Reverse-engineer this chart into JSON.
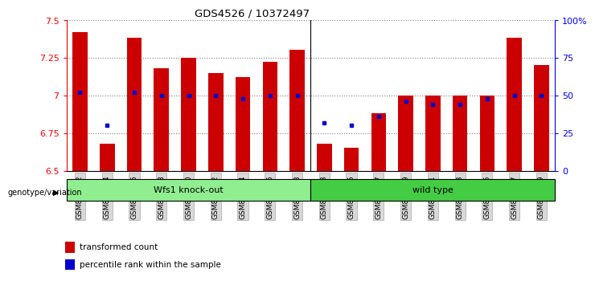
{
  "title": "GDS4526 / 10372497",
  "samples": [
    "GSM825432",
    "GSM825434",
    "GSM825436",
    "GSM825438",
    "GSM825440",
    "GSM825442",
    "GSM825444",
    "GSM825446",
    "GSM825448",
    "GSM825433",
    "GSM825435",
    "GSM825437",
    "GSM825439",
    "GSM825441",
    "GSM825443",
    "GSM825445",
    "GSM825447",
    "GSM825449"
  ],
  "transformed_count": [
    7.42,
    6.68,
    7.38,
    7.18,
    7.25,
    7.15,
    7.12,
    7.22,
    7.3,
    6.68,
    6.65,
    6.88,
    7.0,
    7.0,
    7.0,
    7.0,
    7.38,
    7.2
  ],
  "percentile_rank": [
    52,
    30,
    52,
    50,
    50,
    50,
    48,
    50,
    50,
    32,
    30,
    36,
    46,
    44,
    44,
    48,
    50,
    50
  ],
  "group1_count": 9,
  "group1_label": "Wfs1 knock-out",
  "group2_label": "wild type",
  "group1_color": "#90EE90",
  "group2_color": "#44CC44",
  "bar_color": "#CC0000",
  "dot_color": "#0000CC",
  "ylim_left": [
    6.5,
    7.5
  ],
  "ylim_right": [
    0,
    100
  ],
  "yticks_left": [
    6.5,
    6.75,
    7.0,
    7.25,
    7.5
  ],
  "ytick_labels_left": [
    "6.5",
    "6.75",
    "7",
    "7.25",
    "7.5"
  ],
  "yticks_right": [
    0,
    25,
    50,
    75,
    100
  ],
  "ytick_labels_right": [
    "0",
    "25",
    "50",
    "75",
    "100%"
  ],
  "plot_bg_color": "#ffffff",
  "legend_transformed": "transformed count",
  "legend_percentile": "percentile rank within the sample",
  "genotype_label": "genotype/variation"
}
